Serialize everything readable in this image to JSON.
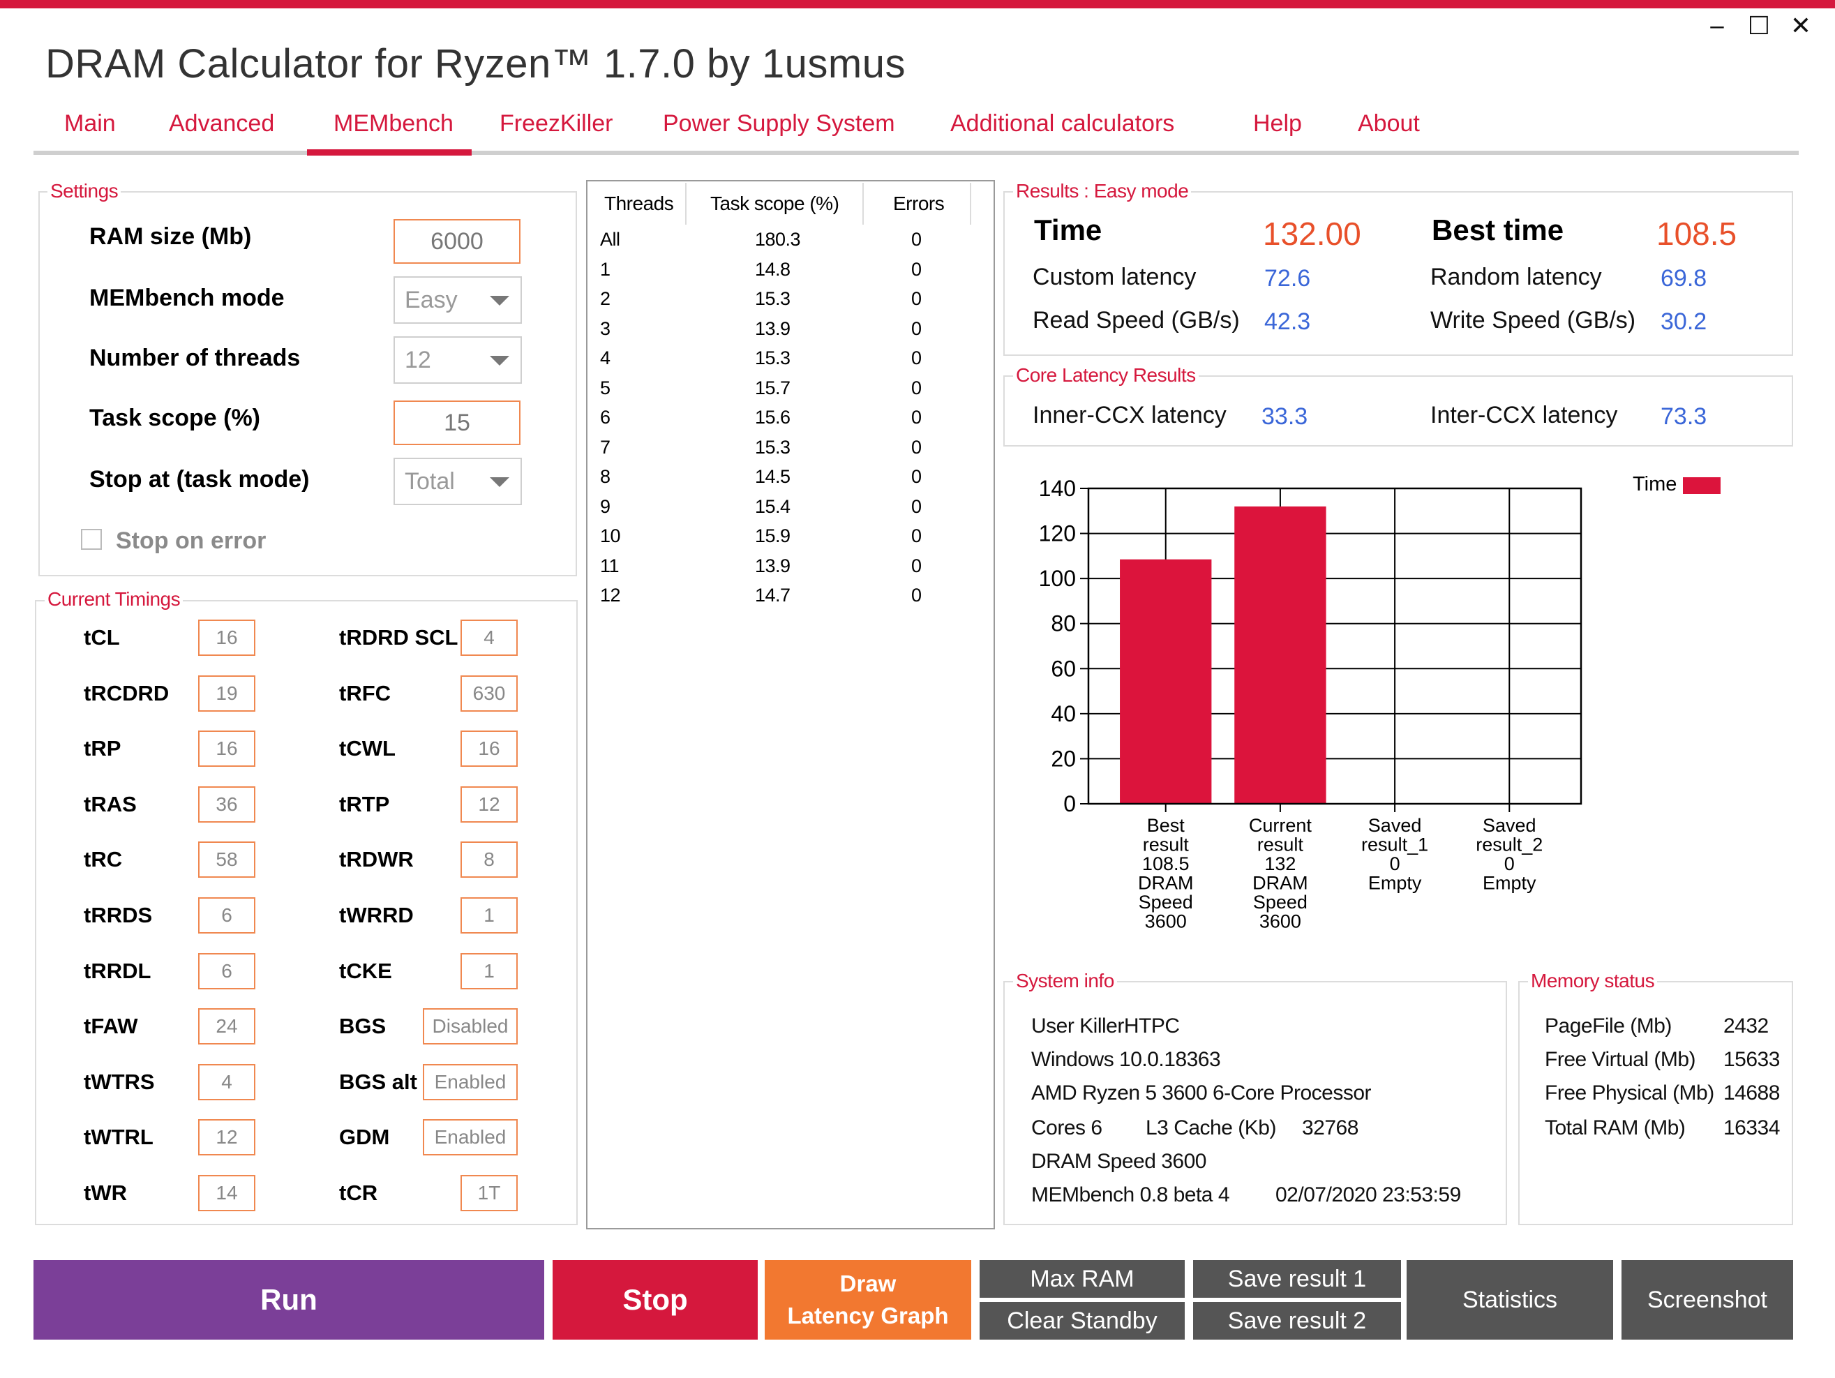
{
  "window": {
    "title": "DRAM Calculator for Ryzen™ 1.7.0 by 1usmus",
    "minimize_glyph": "‒",
    "maximize_glyph": "☐",
    "close_glyph": "✕"
  },
  "tabs": [
    {
      "label": "Main"
    },
    {
      "label": "Advanced"
    },
    {
      "label": "MEMbench",
      "active": true
    },
    {
      "label": "FreezKiller"
    },
    {
      "label": "Power Supply System"
    },
    {
      "label": "Additional calculators"
    },
    {
      "label": "Help"
    },
    {
      "label": "About"
    }
  ],
  "settings": {
    "legend": "Settings",
    "ram_size_label": "RAM size (Mb)",
    "ram_size_value": "6000",
    "mode_label": "MEMbench mode",
    "mode_value": "Easy",
    "threads_label": "Number of threads",
    "threads_value": "12",
    "task_scope_label": "Task scope (%)",
    "task_scope_value": "15",
    "stop_at_label": "Stop at (task mode)",
    "stop_at_value": "Total",
    "stop_on_error_label": "Stop on error",
    "stop_on_error_checked": false
  },
  "timings": {
    "legend": "Current Timings",
    "left": [
      {
        "name": "tCL",
        "value": "16"
      },
      {
        "name": "tRCDRD",
        "value": "19"
      },
      {
        "name": "tRP",
        "value": "16"
      },
      {
        "name": "tRAS",
        "value": "36"
      },
      {
        "name": "tRC",
        "value": "58"
      },
      {
        "name": "tRRDS",
        "value": "6"
      },
      {
        "name": "tRRDL",
        "value": "6"
      },
      {
        "name": "tFAW",
        "value": "24"
      },
      {
        "name": "tWTRS",
        "value": "4"
      },
      {
        "name": "tWTRL",
        "value": "12"
      },
      {
        "name": "tWR",
        "value": "14"
      }
    ],
    "right": [
      {
        "name": "tRDRD SCL",
        "value": "4"
      },
      {
        "name": "tRFC",
        "value": "630"
      },
      {
        "name": "tCWL",
        "value": "16"
      },
      {
        "name": "tRTP",
        "value": "12"
      },
      {
        "name": "tRDWR",
        "value": "8"
      },
      {
        "name": "tWRRD",
        "value": "1"
      },
      {
        "name": "tCKE",
        "value": "1"
      },
      {
        "name": "BGS",
        "value": "Disabled"
      },
      {
        "name": "BGS alt",
        "value": "Enabled"
      },
      {
        "name": "GDM",
        "value": "Enabled"
      },
      {
        "name": "tCR",
        "value": "1T"
      }
    ]
  },
  "threads_table": {
    "headers": [
      "Threads",
      "Task scope (%)",
      "Errors"
    ],
    "rows": [
      [
        "All",
        "180.3",
        "0"
      ],
      [
        "1",
        "14.8",
        "0"
      ],
      [
        "2",
        "15.3",
        "0"
      ],
      [
        "3",
        "13.9",
        "0"
      ],
      [
        "4",
        "15.3",
        "0"
      ],
      [
        "5",
        "15.7",
        "0"
      ],
      [
        "6",
        "15.6",
        "0"
      ],
      [
        "7",
        "15.3",
        "0"
      ],
      [
        "8",
        "14.5",
        "0"
      ],
      [
        "9",
        "15.4",
        "0"
      ],
      [
        "10",
        "15.9",
        "0"
      ],
      [
        "11",
        "13.9",
        "0"
      ],
      [
        "12",
        "14.7",
        "0"
      ]
    ]
  },
  "results": {
    "legend": "Results : Easy mode",
    "time_label": "Time",
    "time_value": "132.00",
    "best_time_label": "Best time",
    "best_time_value": "108.5",
    "custom_latency_label": "Custom latency",
    "custom_latency_value": "72.6",
    "random_latency_label": "Random latency",
    "random_latency_value": "69.8",
    "read_speed_label": "Read Speed (GB/s)",
    "read_speed_value": "42.3",
    "write_speed_label": "Write Speed (GB/s)",
    "write_speed_value": "30.2"
  },
  "core_latency": {
    "legend": "Core Latency Results",
    "inner_label": "Inner-CCX latency",
    "inner_value": "33.3",
    "inter_label": "Inter-CCX latency",
    "inter_value": "73.3"
  },
  "chart_data": {
    "type": "bar",
    "legend": "Time",
    "legend_position": "top-right",
    "grid": true,
    "ylim": [
      0,
      140
    ],
    "yticks": [
      0,
      20,
      40,
      60,
      80,
      100,
      120,
      140
    ],
    "bar_color": "#dc143c",
    "categories": [
      {
        "lines": [
          "Best",
          "result",
          "108.5",
          "DRAM",
          "Speed",
          "3600"
        ]
      },
      {
        "lines": [
          "Current",
          "result",
          "132",
          "DRAM",
          "Speed",
          "3600"
        ]
      },
      {
        "lines": [
          "Saved",
          "result_1",
          "0",
          "Empty"
        ]
      },
      {
        "lines": [
          "Saved",
          "result_2",
          "0",
          "Empty"
        ]
      }
    ],
    "values": [
      108.5,
      132,
      0,
      0
    ]
  },
  "system_info": {
    "legend": "System info",
    "user": "User KillerHTPC",
    "windows": "Windows 10.0.18363",
    "cpu": "AMD Ryzen 5 3600 6-Core Processor",
    "cores": "Cores 6",
    "l3_label": "L3 Cache (Kb)",
    "l3_value": "32768",
    "dram_speed": "DRAM Speed 3600",
    "membench": "MEMbench 0.8 beta 4",
    "datetime": "02/07/2020 23:53:59"
  },
  "memory_status": {
    "legend": "Memory status",
    "rows": [
      {
        "label": "PageFile (Mb)",
        "value": "2432"
      },
      {
        "label": "Free Virtual (Mb)",
        "value": "15633"
      },
      {
        "label": "Free Physical (Mb)",
        "value": "14688"
      },
      {
        "label": "Total RAM (Mb)",
        "value": "16334"
      }
    ]
  },
  "buttons": {
    "run": "Run",
    "stop": "Stop",
    "draw_line1": "Draw",
    "draw_line2": "Latency Graph",
    "max_ram": "Max RAM",
    "clear_standby": "Clear Standby",
    "save_result_1": "Save result 1",
    "save_result_2": "Save result 2",
    "statistics": "Statistics",
    "screenshot": "Screenshot"
  },
  "colors": {
    "accent": "#d5183d",
    "run": "#7b3f98",
    "stop": "#d5183d",
    "draw": "#f27830",
    "grey_button": "#555555",
    "value_blue": "#3a66d8",
    "value_orange": "#e8502a"
  }
}
